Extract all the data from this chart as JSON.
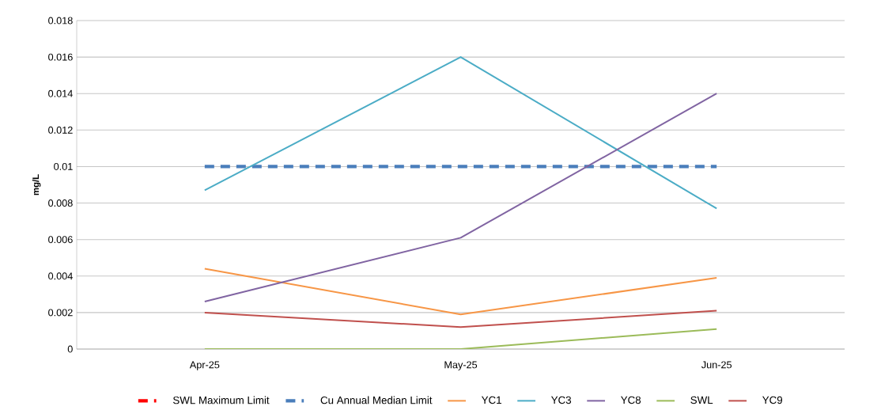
{
  "chart_data": {
    "type": "line",
    "ylabel": "mg/L",
    "categories": [
      "Apr-25",
      "May-25",
      "Jun-25"
    ],
    "series": [
      {
        "name": "SWL Maximum Limit",
        "color": "#ff0000",
        "line_style": "dashed",
        "values": [
          null,
          null,
          null
        ]
      },
      {
        "name": "Cu Annual Median Limit",
        "color": "#4a7ebb",
        "line_style": "dashed",
        "values": [
          0.01,
          0.01,
          0.01
        ]
      },
      {
        "name": "YC1",
        "color": "#f79646",
        "values": [
          0.0044,
          0.0019,
          0.0039
        ]
      },
      {
        "name": "YC3",
        "color": "#4bacc6",
        "values": [
          0.0087,
          0.016,
          0.0077
        ]
      },
      {
        "name": "YC8",
        "color": "#8064a2",
        "values": [
          0.0026,
          0.0061,
          0.014
        ]
      },
      {
        "name": "SWL",
        "color": "#9bbb59",
        "values": [
          0,
          0,
          0.0011
        ]
      },
      {
        "name": "YC9",
        "color": "#c0504d",
        "values": [
          0.002,
          0.0012,
          0.0021
        ]
      }
    ],
    "ylim": [
      0,
      0.018
    ],
    "yticks": [
      0,
      0.002,
      0.004,
      0.006,
      0.008,
      0.01,
      0.012,
      0.014,
      0.016,
      0.018
    ],
    "grid": "y",
    "legend": "bottom",
    "marker": "none",
    "line_style": "solid"
  }
}
